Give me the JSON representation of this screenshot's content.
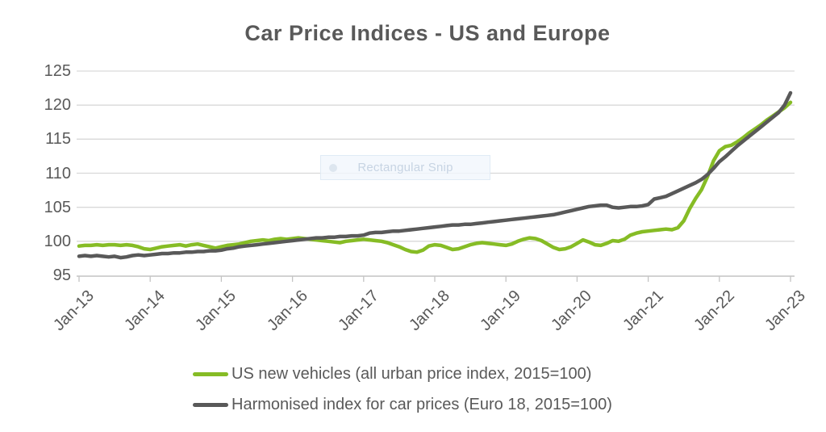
{
  "title": "Car Price Indices - US and Europe",
  "snip_tooltip": {
    "label": "Rectangular Snip"
  },
  "chart_data": {
    "type": "line",
    "title": "Car Price Indices - US and Europe",
    "x_tick_labels": [
      "Jan-13",
      "Jan-14",
      "Jan-15",
      "Jan-16",
      "Jan-17",
      "Jan-18",
      "Jan-19",
      "Jan-20",
      "Jan-21",
      "Jan-22",
      "Jan-23"
    ],
    "points_per_year": 12,
    "ylim": [
      95,
      125
    ],
    "yticks": [
      95,
      100,
      105,
      110,
      115,
      120,
      125
    ],
    "grid": "horizontal",
    "legend_position": "bottom",
    "colors": {
      "us": "#86bc25",
      "euro": "#595959",
      "gridline": "#d9d9d9",
      "axis": "#c4c4c4",
      "text": "#595959"
    },
    "series": [
      {
        "name": "US new vehicles (all urban price index, 2015=100)",
        "color": "#86bc25",
        "values": [
          99.3,
          99.4,
          99.4,
          99.5,
          99.4,
          99.5,
          99.5,
          99.4,
          99.5,
          99.4,
          99.2,
          98.9,
          98.8,
          99.0,
          99.2,
          99.3,
          99.4,
          99.5,
          99.3,
          99.5,
          99.6,
          99.4,
          99.2,
          99.0,
          99.2,
          99.4,
          99.5,
          99.6,
          99.8,
          100.0,
          100.1,
          100.2,
          100.1,
          100.3,
          100.4,
          100.3,
          100.4,
          100.5,
          100.4,
          100.3,
          100.2,
          100.1,
          100.0,
          99.9,
          99.8,
          100.0,
          100.1,
          100.2,
          100.3,
          100.2,
          100.1,
          100.0,
          99.8,
          99.5,
          99.2,
          98.8,
          98.5,
          98.4,
          98.7,
          99.3,
          99.5,
          99.4,
          99.1,
          98.8,
          98.9,
          99.2,
          99.5,
          99.7,
          99.8,
          99.7,
          99.6,
          99.5,
          99.4,
          99.6,
          100.0,
          100.3,
          100.5,
          100.4,
          100.1,
          99.6,
          99.1,
          98.8,
          98.9,
          99.2,
          99.7,
          100.2,
          99.9,
          99.5,
          99.4,
          99.7,
          100.1,
          100.0,
          100.3,
          100.9,
          101.2,
          101.4,
          101.5,
          101.6,
          101.7,
          101.8,
          101.7,
          102.0,
          103.0,
          104.8,
          106.3,
          107.6,
          109.5,
          111.8,
          113.3,
          113.9,
          114.1,
          114.6,
          115.2,
          115.9,
          116.5,
          117.1,
          117.8,
          118.4,
          119.0,
          119.6,
          120.4
        ]
      },
      {
        "name": "Harmonised index for car prices (Euro 18, 2015=100)",
        "color": "#595959",
        "values": [
          97.8,
          97.9,
          97.8,
          97.9,
          97.8,
          97.7,
          97.8,
          97.6,
          97.7,
          97.9,
          98.0,
          97.9,
          98.0,
          98.1,
          98.2,
          98.2,
          98.3,
          98.3,
          98.4,
          98.4,
          98.5,
          98.5,
          98.6,
          98.6,
          98.7,
          98.9,
          99.0,
          99.2,
          99.3,
          99.4,
          99.5,
          99.6,
          99.7,
          99.8,
          99.9,
          100.0,
          100.1,
          100.2,
          100.3,
          100.4,
          100.5,
          100.5,
          100.6,
          100.6,
          100.7,
          100.7,
          100.8,
          100.8,
          100.9,
          101.2,
          101.3,
          101.3,
          101.4,
          101.5,
          101.5,
          101.6,
          101.7,
          101.8,
          101.9,
          102.0,
          102.1,
          102.2,
          102.3,
          102.4,
          102.4,
          102.5,
          102.5,
          102.6,
          102.7,
          102.8,
          102.9,
          103.0,
          103.1,
          103.2,
          103.3,
          103.4,
          103.5,
          103.6,
          103.7,
          103.8,
          103.9,
          104.1,
          104.3,
          104.5,
          104.7,
          104.9,
          105.1,
          105.2,
          105.3,
          105.3,
          105.0,
          104.9,
          105.0,
          105.1,
          105.1,
          105.2,
          105.4,
          106.2,
          106.4,
          106.6,
          107.0,
          107.4,
          107.8,
          108.2,
          108.6,
          109.1,
          109.8,
          110.7,
          111.7,
          112.4,
          113.2,
          114.0,
          114.7,
          115.4,
          116.1,
          116.8,
          117.5,
          118.2,
          118.9,
          120.0,
          121.8
        ]
      }
    ]
  }
}
